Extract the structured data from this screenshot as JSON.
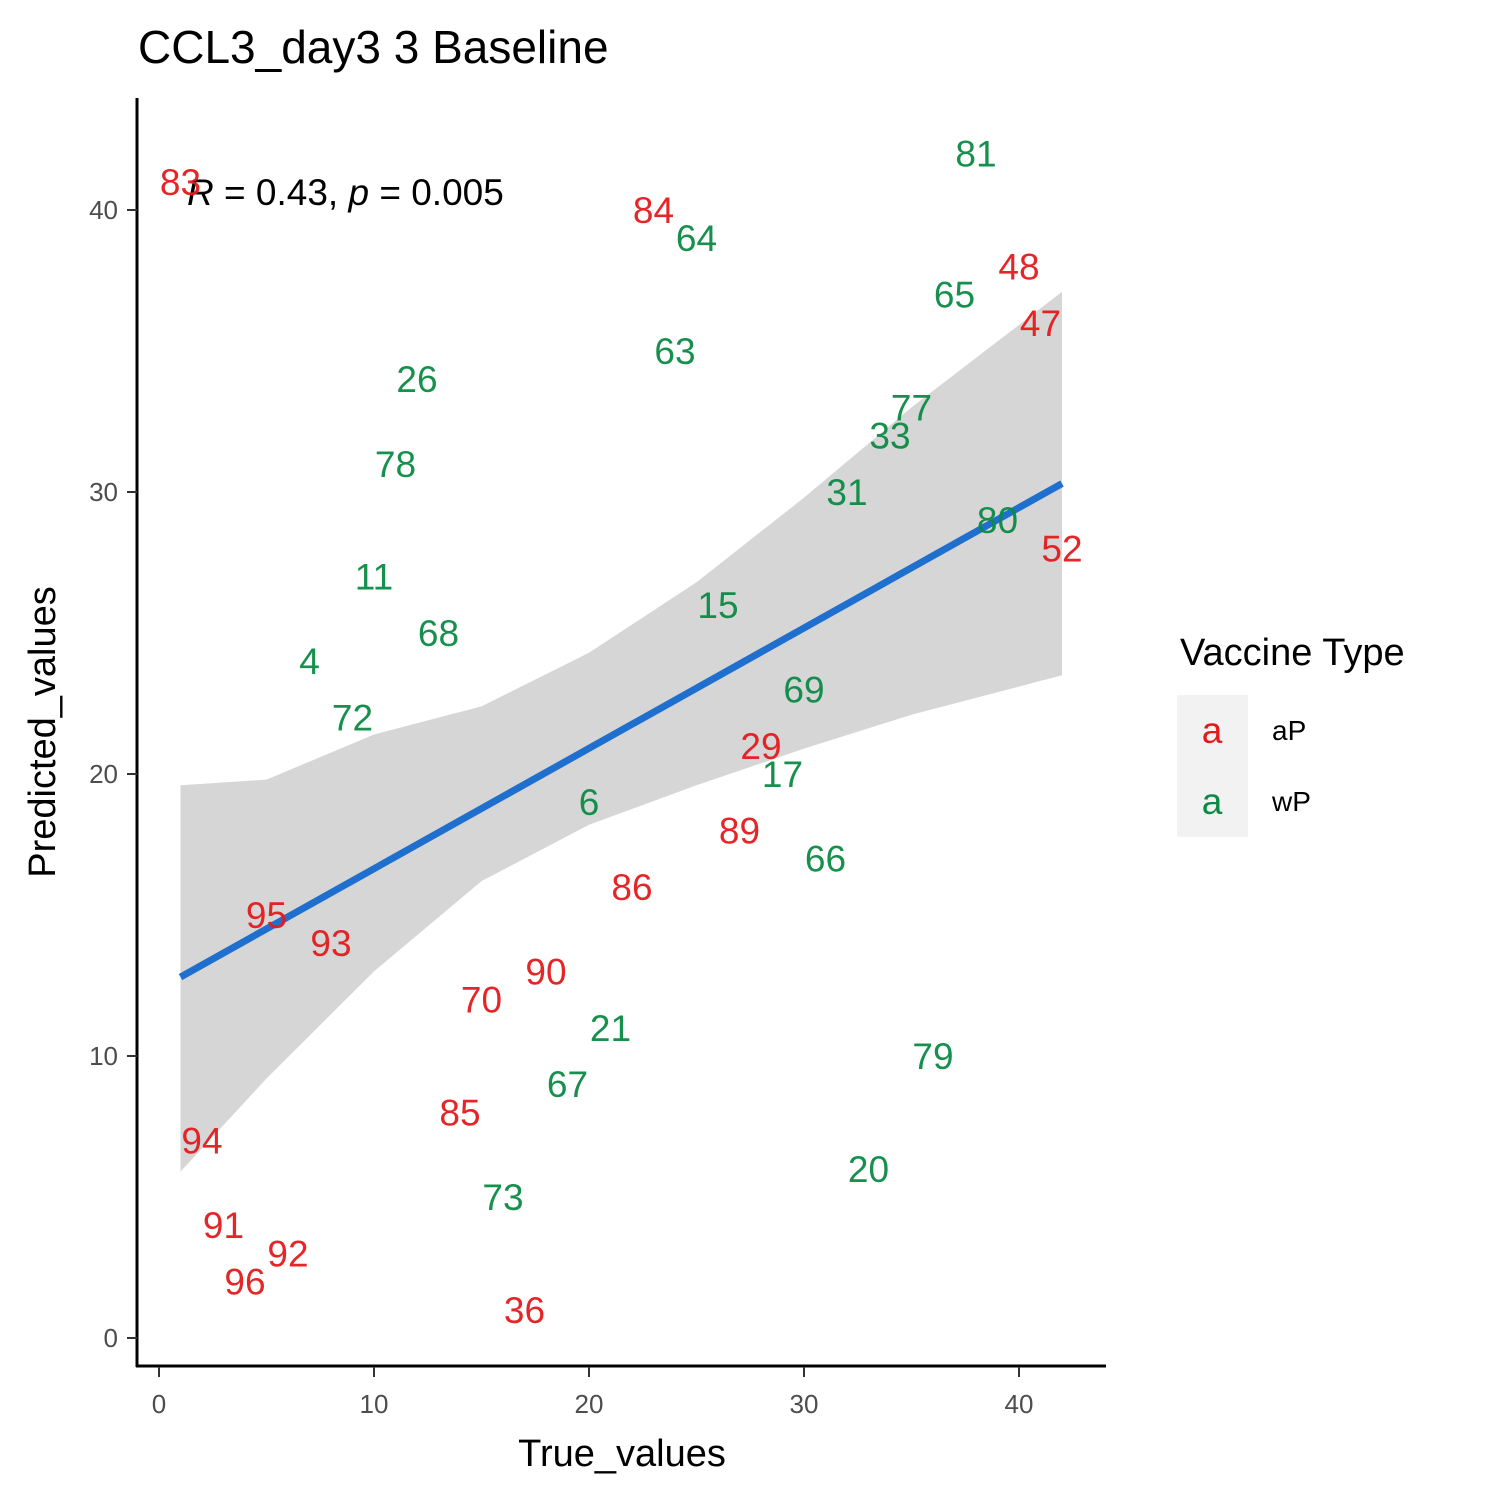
{
  "chart_data": {
    "type": "scatter",
    "title": "CCL3_day3 3 Baseline",
    "xlabel": "True_values",
    "ylabel": "Predicted_values",
    "xlim": [
      -1,
      44
    ],
    "ylim": [
      -1,
      44
    ],
    "x_ticks": [
      0,
      10,
      20,
      30,
      40
    ],
    "y_ticks": [
      0,
      10,
      20,
      30,
      40
    ],
    "grid": false,
    "stat_annotation": {
      "r_symbol": "R",
      "r_text": " = 0.43, ",
      "p_symbol": "p",
      "p_text": " = 0.005"
    },
    "legend": {
      "title": "Vaccine Type",
      "position": "right",
      "key_glyph": "a",
      "entries": [
        {
          "label": "aP",
          "color": "#e31a1c"
        },
        {
          "label": "wP",
          "color": "#0b8a43"
        }
      ]
    },
    "series": [
      {
        "name": "aP",
        "color": "#e31a1c",
        "points": [
          {
            "label": "83",
            "x": 1,
            "y": 41
          },
          {
            "label": "84",
            "x": 23,
            "y": 40
          },
          {
            "label": "48",
            "x": 40,
            "y": 38
          },
          {
            "label": "47",
            "x": 41,
            "y": 36
          },
          {
            "label": "52",
            "x": 42,
            "y": 28
          },
          {
            "label": "29",
            "x": 28,
            "y": 21
          },
          {
            "label": "89",
            "x": 27,
            "y": 18
          },
          {
            "label": "86",
            "x": 22,
            "y": 16
          },
          {
            "label": "95",
            "x": 5,
            "y": 15
          },
          {
            "label": "93",
            "x": 8,
            "y": 14
          },
          {
            "label": "90",
            "x": 18,
            "y": 13
          },
          {
            "label": "70",
            "x": 15,
            "y": 12
          },
          {
            "label": "85",
            "x": 14,
            "y": 8
          },
          {
            "label": "94",
            "x": 2,
            "y": 7
          },
          {
            "label": "91",
            "x": 3,
            "y": 4
          },
          {
            "label": "92",
            "x": 6,
            "y": 3
          },
          {
            "label": "96",
            "x": 4,
            "y": 2
          },
          {
            "label": "36",
            "x": 17,
            "y": 1
          }
        ]
      },
      {
        "name": "wP",
        "color": "#0b8a43",
        "points": [
          {
            "label": "81",
            "x": 38,
            "y": 42
          },
          {
            "label": "64",
            "x": 25,
            "y": 39
          },
          {
            "label": "65",
            "x": 37,
            "y": 37
          },
          {
            "label": "63",
            "x": 24,
            "y": 35
          },
          {
            "label": "26",
            "x": 12,
            "y": 34
          },
          {
            "label": "77",
            "x": 35,
            "y": 33
          },
          {
            "label": "33",
            "x": 34,
            "y": 32
          },
          {
            "label": "78",
            "x": 11,
            "y": 31
          },
          {
            "label": "31",
            "x": 32,
            "y": 30
          },
          {
            "label": "80",
            "x": 39,
            "y": 29
          },
          {
            "label": "11",
            "x": 10,
            "y": 27
          },
          {
            "label": "15",
            "x": 26,
            "y": 26
          },
          {
            "label": "68",
            "x": 13,
            "y": 25
          },
          {
            "label": "4",
            "x": 7,
            "y": 24
          },
          {
            "label": "69",
            "x": 30,
            "y": 23
          },
          {
            "label": "72",
            "x": 9,
            "y": 22
          },
          {
            "label": "17",
            "x": 29,
            "y": 20
          },
          {
            "label": "6",
            "x": 20,
            "y": 19
          },
          {
            "label": "66",
            "x": 31,
            "y": 17
          },
          {
            "label": "21",
            "x": 21,
            "y": 11
          },
          {
            "label": "79",
            "x": 36,
            "y": 10
          },
          {
            "label": "67",
            "x": 19,
            "y": 9
          },
          {
            "label": "20",
            "x": 33,
            "y": 6
          },
          {
            "label": "73",
            "x": 16,
            "y": 5
          }
        ]
      }
    ],
    "regression": {
      "color": "#1f6fcf",
      "band_color": "#d6d6d6",
      "x_start": 1,
      "x_end": 42,
      "fit": [
        {
          "x": 1,
          "y": 12.8,
          "lo": 5.9,
          "hi": 19.6
        },
        {
          "x": 5,
          "y": 14.5,
          "lo": 9.2,
          "hi": 19.8
        },
        {
          "x": 10,
          "y": 16.7,
          "lo": 13.0,
          "hi": 21.4
        },
        {
          "x": 15,
          "y": 18.8,
          "lo": 16.2,
          "hi": 22.4
        },
        {
          "x": 20,
          "y": 20.9,
          "lo": 18.2,
          "hi": 24.3
        },
        {
          "x": 25,
          "y": 23.1,
          "lo": 19.6,
          "hi": 26.8
        },
        {
          "x": 30,
          "y": 25.2,
          "lo": 20.9,
          "hi": 29.8
        },
        {
          "x": 35,
          "y": 27.3,
          "lo": 22.1,
          "hi": 33.0
        },
        {
          "x": 42,
          "y": 30.3,
          "lo": 23.5,
          "hi": 37.1
        }
      ]
    }
  }
}
